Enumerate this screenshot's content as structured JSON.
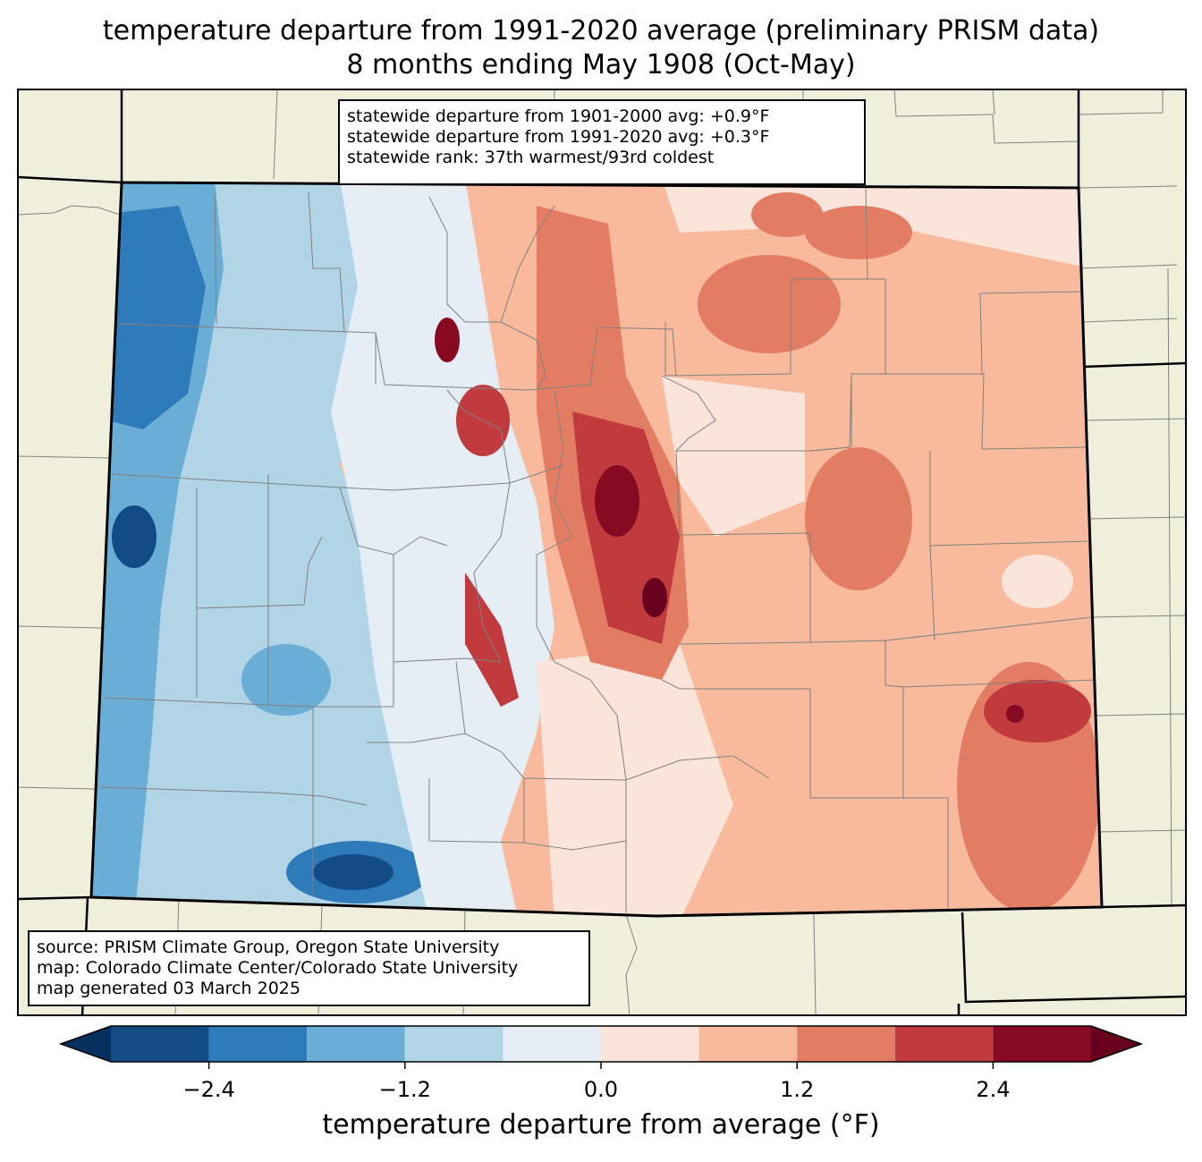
{
  "title_line1": "temperature departure from 1991-2020 average (preliminary PRISM data)",
  "title_line2": "8 months ending May 1908 (Oct-May)",
  "stats": {
    "line1": "statewide departure from 1901-2000 avg: +0.9°F",
    "line2": "statewide departure from 1991-2020 avg: +0.3°F",
    "line3": "statewide rank: 37th warmest/93rd coldest"
  },
  "source": {
    "line1": "source: PRISM Climate Group, Oregon State University",
    "line2": "map: Colorado Climate Center/Colorado State University",
    "line3": "map generated 03 March 2025"
  },
  "colorbar": {
    "label": "temperature departure from average (°F)",
    "ticks": [
      "−2.4",
      "−1.2",
      "0.0",
      "1.2",
      "2.4"
    ],
    "tick_values": [
      -2.4,
      -1.2,
      0.0,
      1.2,
      2.4
    ],
    "bounds": [
      -3.0,
      -2.4,
      -1.8,
      -1.2,
      -0.6,
      0.0,
      0.6,
      1.2,
      1.8,
      2.4,
      3.0
    ],
    "colors": [
      "#134b87",
      "#2f7ab9",
      "#6aadd5",
      "#b1d4e7",
      "#e5eef5",
      "#fbe5da",
      "#f8b99c",
      "#e27d63",
      "#c13a3e",
      "#880a22"
    ],
    "under_color": "#08305f",
    "over_color": "#67001f"
  },
  "colors": {
    "land": "#f0efdc",
    "state_border": "#000000",
    "county_border": "#808080"
  }
}
